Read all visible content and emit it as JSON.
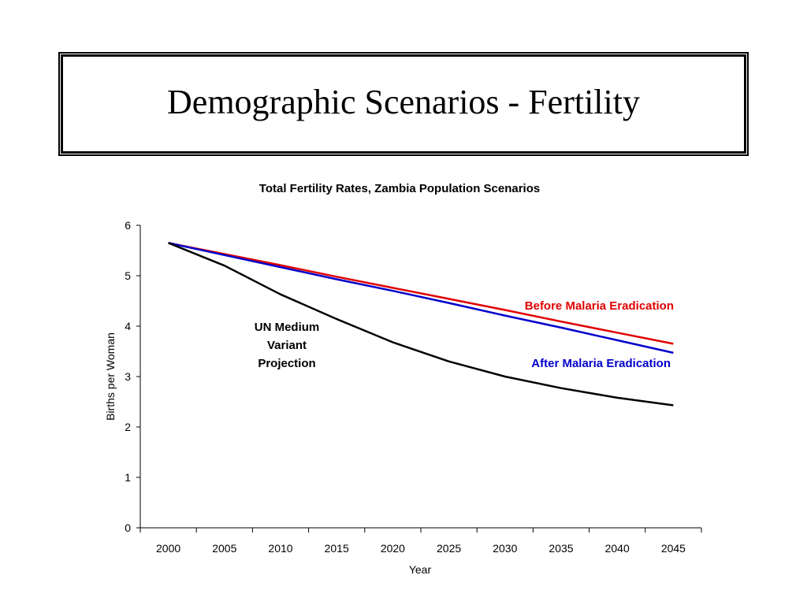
{
  "slide": {
    "title": "Demographic Scenarios - Fertility"
  },
  "chart_data": {
    "type": "line",
    "title": "Total Fertility Rates, Zambia Population Scenarios",
    "xlabel": "Year",
    "ylabel": "Births per Woman",
    "x": [
      2000,
      2005,
      2010,
      2015,
      2020,
      2025,
      2030,
      2035,
      2040,
      2045
    ],
    "xlim": [
      1997.5,
      2047.5
    ],
    "ylim": [
      0,
      6
    ],
    "x_ticks": [
      "2000",
      "2005",
      "2010",
      "2015",
      "2020",
      "2025",
      "2030",
      "2035",
      "2040",
      "2045"
    ],
    "y_ticks": [
      "0",
      "1",
      "2",
      "3",
      "4",
      "5",
      "6"
    ],
    "grid": false,
    "series": [
      {
        "name": "Before Malaria Eradication",
        "color": "#e00000",
        "values": [
          5.65,
          5.43,
          5.21,
          4.98,
          4.76,
          4.54,
          4.32,
          4.09,
          3.87,
          3.65
        ]
      },
      {
        "name": "After Malaria Eradication",
        "color": "#0000cc",
        "values": [
          5.65,
          5.41,
          5.17,
          4.93,
          4.7,
          4.46,
          4.21,
          3.97,
          3.72,
          3.47
        ]
      },
      {
        "name": "UN Medium Variant Projection",
        "color": "#000000",
        "values": [
          5.65,
          5.2,
          4.63,
          4.14,
          3.68,
          3.3,
          3.0,
          2.77,
          2.58,
          2.43
        ]
      }
    ],
    "annotations": [
      {
        "lines": [
          "UN Medium",
          "Variant",
          "Projection"
        ],
        "color": "#000000"
      },
      {
        "lines": [
          "Before Malaria Eradication"
        ],
        "color": "#e00000"
      },
      {
        "lines": [
          "After Malaria Eradication"
        ],
        "color": "#0000cc"
      }
    ]
  }
}
